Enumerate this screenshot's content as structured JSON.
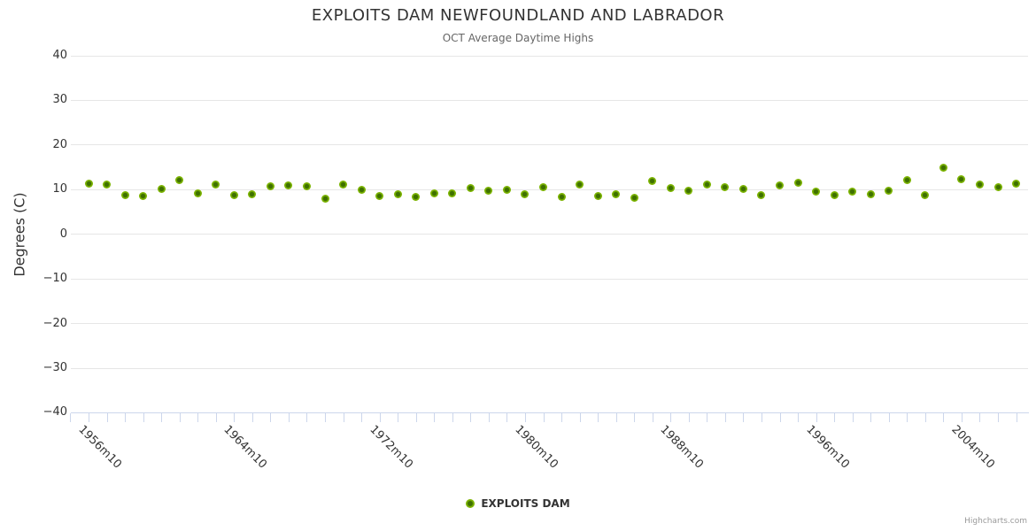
{
  "chart": {
    "title": "EXPLOITS DAM NEWFOUNDLAND AND LABRADOR",
    "subtitle": "OCT Average Daytime Highs",
    "ylabel": "Degrees (C)"
  },
  "legend": {
    "label": "EXPLOITS DAM"
  },
  "credits": {
    "text": "Highcharts.com"
  },
  "colors": {
    "title": "#333333",
    "subtitle": "#666666",
    "axis_labels": "#333333",
    "gridline": "#e6e6e6",
    "axis_line": "#ccd6eb",
    "marker_outer": "#7cb400",
    "marker_inner": "#3e7000",
    "credits": "#999999"
  },
  "chart_data": {
    "type": "scatter",
    "title": "EXPLOITS DAM NEWFOUNDLAND AND LABRADOR",
    "subtitle": "OCT Average Daytime Highs",
    "xlabel": "",
    "ylabel": "Degrees (C)",
    "ylim": [
      -40,
      40
    ],
    "y_ticks": [
      40,
      30,
      20,
      10,
      0,
      -10,
      -20,
      -30,
      -40
    ],
    "grid": true,
    "legend_position": "bottom",
    "series_name": "EXPLOITS DAM",
    "categories": [
      "1956m10",
      "1957m10",
      "1958m10",
      "1959m10",
      "1960m10",
      "1961m10",
      "1962m10",
      "1963m10",
      "1964m10",
      "1965m10",
      "1966m10",
      "1967m10",
      "1968m10",
      "1969m10",
      "1970m10",
      "1971m10",
      "1972m10",
      "1973m10",
      "1974m10",
      "1975m10",
      "1976m10",
      "1977m10",
      "1978m10",
      "1979m10",
      "1980m10",
      "1981m10",
      "1982m10",
      "1983m10",
      "1984m10",
      "1985m10",
      "1986m10",
      "1987m10",
      "1988m10",
      "1989m10",
      "1990m10",
      "1991m10",
      "1992m10",
      "1993m10",
      "1994m10",
      "1995m10",
      "1996m10",
      "1997m10",
      "1998m10",
      "1999m10",
      "2000m10",
      "2001m10",
      "2002m10",
      "2003m10",
      "2004m10",
      "2005m10",
      "2006m10",
      "2007m10"
    ],
    "values": [
      11.4,
      11.2,
      8.8,
      8.6,
      10.1,
      12.2,
      9.2,
      11.2,
      8.7,
      8.9,
      10.7,
      10.9,
      10.7,
      7.9,
      11.2,
      10.0,
      8.5,
      9.0,
      8.3,
      9.2,
      9.1,
      10.3,
      9.7,
      10.0,
      8.9,
      10.6,
      8.4,
      11.2,
      8.6,
      9.0,
      8.2,
      12.0,
      10.4,
      9.7,
      11.1,
      10.6,
      10.2,
      8.8,
      11.0,
      11.6,
      9.6,
      8.8,
      9.5,
      9.0,
      9.7,
      12.2,
      8.8,
      14.9,
      12.3,
      11.1,
      10.6,
      11.3
    ],
    "x_label_indices": [
      0,
      8,
      16,
      24,
      32,
      40,
      48
    ]
  }
}
